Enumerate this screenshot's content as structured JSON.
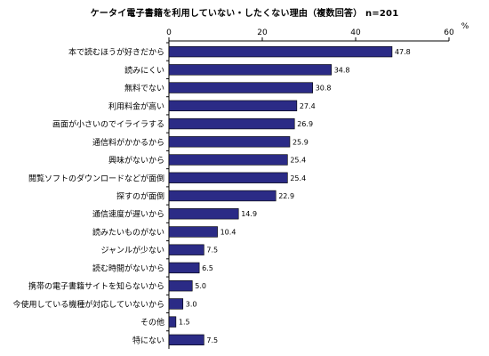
{
  "chart_data": {
    "type": "bar",
    "orientation": "horizontal",
    "title": "ケータイ電子書籍を利用していない・したくない理由（複数回答） n=201",
    "unit": "%",
    "xlim": [
      0,
      60
    ],
    "ticks": [
      0,
      20,
      40,
      60
    ],
    "grid": false,
    "bar_color": "#2b2b86",
    "categories": [
      "本で読むほうが好きだから",
      "読みにくい",
      "無料でない",
      "利用料金が高い",
      "画面が小さいのでイライラする",
      "通信料がかかるから",
      "興味がないから",
      "閲覧ソフトのダウンロードなどが面倒",
      "探すのが面倒",
      "通信速度が遅いから",
      "読みたいものがない",
      "ジャンルが少ない",
      "読む時間がないから",
      "携帯の電子書籍サイトを知らないから",
      "今使用している機種が対応していないから",
      "その他",
      "特にない"
    ],
    "values": [
      47.8,
      34.8,
      30.8,
      27.4,
      26.9,
      25.9,
      25.4,
      25.4,
      22.9,
      14.9,
      10.4,
      7.5,
      6.5,
      5.0,
      3.0,
      1.5,
      7.5
    ],
    "value_labels": [
      "47.8",
      "34.8",
      "30.8",
      "27.4",
      "26.9",
      "25.9",
      "25.4",
      "25.4",
      "22.9",
      "14.9",
      "10.4",
      "7.5",
      "6.5",
      "5.0",
      "3.0",
      "1.5",
      "7.5"
    ]
  }
}
